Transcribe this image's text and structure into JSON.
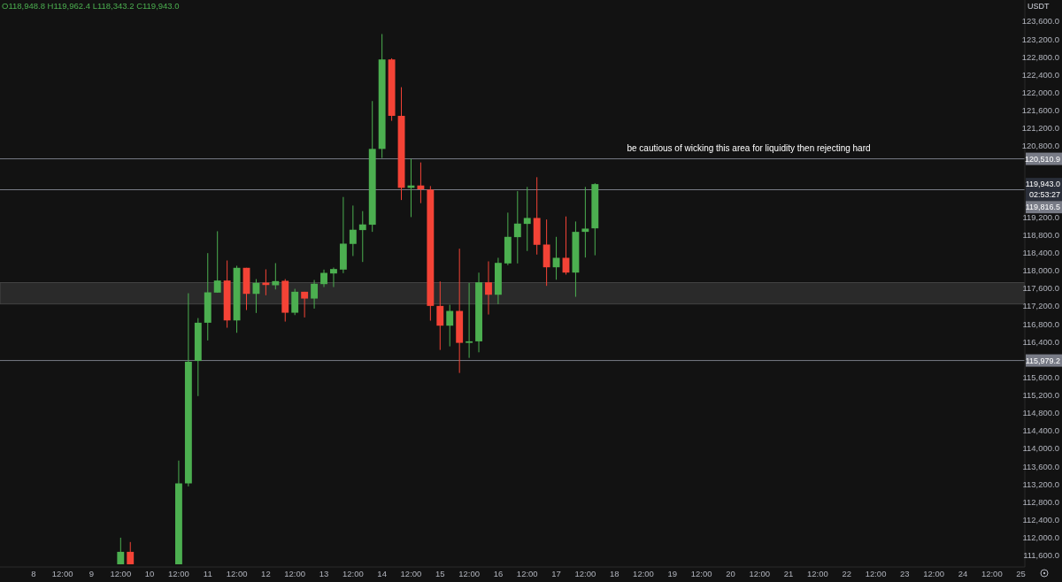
{
  "chart_data": {
    "type": "candlestick",
    "ylabel": "USDT",
    "categories": [
      null,
      null,
      "8",
      null,
      null,
      "12:00",
      null,
      null,
      "9",
      null,
      null,
      "12:00",
      null,
      null,
      "10",
      null,
      null,
      "12:00",
      null,
      null,
      "11",
      null,
      null,
      "12:00",
      null,
      null,
      "12",
      null,
      null,
      "12:00",
      null,
      null,
      "13",
      null,
      null,
      "12:00",
      null,
      null,
      "14",
      null,
      null,
      "12:00",
      null,
      null,
      "15",
      null,
      null,
      "12:00",
      null,
      null,
      "16",
      null,
      null,
      "12:00",
      null,
      null,
      "17",
      null,
      null,
      "12:00",
      null,
      null,
      "18",
      null,
      null,
      "12:00",
      null,
      null,
      "19",
      null,
      null,
      "12:00",
      null,
      null,
      "20",
      null,
      null,
      "12:00",
      null,
      null,
      "21",
      null,
      null,
      "12:00",
      null,
      null,
      "22",
      null,
      null,
      "12:00",
      null,
      null,
      "23",
      null,
      null,
      "12:00",
      null,
      null,
      "24",
      null,
      null,
      "12:00",
      null,
      null,
      "25"
    ],
    "ohlc": [
      null,
      null,
      null,
      null,
      null,
      null,
      null,
      null,
      null,
      null,
      null,
      [
        111400,
        111998,
        111400,
        111680
      ],
      [
        111680,
        111900,
        111400,
        111400
      ],
      null,
      null,
      null,
      null,
      [
        111400,
        113730,
        111400,
        113218
      ],
      [
        113218,
        117491,
        113150,
        115952
      ],
      [
        115970,
        116933,
        115180,
        116828
      ],
      [
        116828,
        118392,
        116430,
        117511
      ],
      [
        117505,
        118884,
        117505,
        117776
      ],
      [
        117776,
        118227,
        116715,
        116880
      ],
      [
        116880,
        118108,
        116602,
        118062
      ],
      [
        118062,
        118062,
        117113,
        117477
      ],
      [
        117477,
        117809,
        117047,
        117724
      ],
      [
        117730,
        118028,
        117445,
        117676
      ],
      [
        117670,
        118167,
        117576,
        117763
      ],
      [
        117770,
        117809,
        116854,
        117053
      ],
      [
        117053,
        117590,
        116999,
        117524
      ],
      [
        117524,
        117524,
        116947,
        117371
      ],
      [
        117371,
        117789,
        117146,
        117704
      ],
      [
        117696,
        118022,
        117630,
        117948
      ],
      [
        117935,
        118068,
        117630,
        118035
      ],
      [
        118022,
        119654,
        117942,
        118605
      ],
      [
        118599,
        119461,
        118327,
        118918
      ],
      [
        118910,
        119336,
        118193,
        119037
      ],
      [
        119030,
        121809,
        118870,
        120734
      ],
      [
        120734,
        123315,
        120529,
        122744
      ],
      [
        122744,
        122770,
        121365,
        121477
      ],
      [
        121477,
        122121,
        119586,
        119859
      ],
      [
        119859,
        120510,
        119202,
        119912
      ],
      [
        119912,
        120430,
        119515,
        119825
      ],
      [
        119819,
        119899,
        116874,
        117206
      ],
      [
        117206,
        117756,
        116217,
        116762
      ],
      [
        116762,
        117232,
        116297,
        117093
      ],
      [
        117093,
        118492,
        115700,
        116376
      ],
      [
        116376,
        117723,
        116038,
        116410
      ],
      [
        116410,
        117954,
        116164,
        117736
      ],
      [
        117736,
        118207,
        117013,
        117457
      ],
      [
        117457,
        118287,
        117246,
        118173
      ],
      [
        118161,
        119302,
        118121,
        118758
      ],
      [
        118751,
        119785,
        118161,
        119056
      ],
      [
        119049,
        119879,
        118440,
        119182
      ],
      [
        119182,
        120098,
        118360,
        118579
      ],
      [
        118585,
        119148,
        117656,
        118074
      ],
      [
        118074,
        118758,
        117795,
        118287
      ],
      [
        118287,
        119216,
        117909,
        117955
      ],
      [
        117955,
        119103,
        117411,
        118870
      ],
      [
        118870,
        119879,
        118293,
        118943
      ],
      [
        118948.8,
        119962.4,
        118343.2,
        119943.0
      ],
      null,
      null,
      null,
      null,
      null,
      null,
      null,
      null,
      null,
      null,
      null,
      null,
      null,
      null,
      null,
      null,
      null,
      null,
      null,
      null,
      null,
      null,
      null,
      null,
      null,
      null,
      null,
      null,
      null,
      null,
      null,
      null,
      null,
      null,
      null,
      null,
      null,
      null,
      null,
      null,
      null,
      null,
      null,
      null
    ],
    "colors": [
      null,
      null,
      null,
      null,
      null,
      null,
      null,
      null,
      null,
      null,
      null,
      "#4caf50",
      "#f44336",
      null,
      null,
      null,
      null,
      "#4caf50",
      "#4caf50",
      "#4caf50",
      "#4caf50",
      "#4caf50",
      "#f44336",
      "#4caf50",
      "#f44336",
      "#4caf50",
      "#f44336",
      "#4caf50",
      "#f44336",
      "#4caf50",
      "#f44336",
      "#4caf50",
      "#4caf50",
      "#4caf50",
      "#4caf50",
      "#4caf50",
      "#4caf50",
      "#4caf50",
      "#4caf50",
      "#f44336",
      "#f44336",
      "#4caf50",
      "#f44336",
      "#f44336",
      "#f44336",
      "#4caf50",
      "#f44336",
      "#4caf50",
      "#4caf50",
      "#f44336",
      "#4caf50",
      "#4caf50",
      "#4caf50",
      "#4caf50",
      "#f44336",
      "#f44336",
      "#4caf50",
      "#f44336",
      "#4caf50",
      "#4caf50",
      "#4caf50",
      null,
      null,
      null,
      null,
      null,
      null,
      null,
      null,
      null,
      null,
      null,
      null,
      null,
      null,
      null,
      null,
      null,
      null,
      null,
      null,
      null,
      null,
      null,
      null,
      null,
      null,
      null,
      null,
      null,
      null,
      null,
      null,
      null,
      null,
      null,
      null,
      null,
      null,
      null,
      null,
      null,
      null,
      null,
      null
    ],
    "ylim": [
      111340,
      124080
    ],
    "yticks": [
      {
        "value": 111600,
        "label": "111,600.0"
      },
      {
        "value": 112000,
        "label": "112,000.0"
      },
      {
        "value": 112400,
        "label": "112,400.0"
      },
      {
        "value": 112800,
        "label": "112,800.0"
      },
      {
        "value": 113200,
        "label": "113,200.0"
      },
      {
        "value": 113600,
        "label": "113,600.0"
      },
      {
        "value": 114000,
        "label": "114,000.0"
      },
      {
        "value": 114400,
        "label": "114,400.0"
      },
      {
        "value": 114800,
        "label": "114,800.0"
      },
      {
        "value": 115200,
        "label": "115,200.0"
      },
      {
        "value": 115600,
        "label": "115,600.0"
      },
      {
        "value": 116400,
        "label": "116,400.0"
      },
      {
        "value": 116800,
        "label": "116,800.0"
      },
      {
        "value": 117200,
        "label": "117,200.0"
      },
      {
        "value": 117600,
        "label": "117,600.0"
      },
      {
        "value": 118000,
        "label": "118,000.0"
      },
      {
        "value": 118400,
        "label": "118,400.0"
      },
      {
        "value": 118800,
        "label": "118,800.0"
      },
      {
        "value": 119200,
        "label": "119,200.0"
      },
      {
        "value": 120800,
        "label": "120,800.0"
      },
      {
        "value": 121200,
        "label": "121,200.0"
      },
      {
        "value": 121600,
        "label": "121,600.0"
      },
      {
        "value": 122000,
        "label": "122,000.0"
      },
      {
        "value": 122400,
        "label": "122,400.0"
      },
      {
        "value": 122800,
        "label": "122,800.0"
      },
      {
        "value": 123200,
        "label": "123,200.0"
      },
      {
        "value": 123600,
        "label": "123,600.0"
      }
    ],
    "ref_lines": [
      {
        "axis": "y",
        "value": 120510.9,
        "label": "120,510.9",
        "color": "#787b86"
      },
      {
        "axis": "y",
        "value": 119816.5,
        "label": "119,816.5",
        "color": "#787b86"
      },
      {
        "axis": "y",
        "value": 115979.2,
        "label": "115,979.2",
        "color": "#787b86"
      }
    ],
    "bands": [
      {
        "axis": "y",
        "from": 117250,
        "to": 117730,
        "color": "#2a2a2a"
      }
    ],
    "annotations": [
      "O118,948.8 H119,962.4 L118,343.2 C119,943.0",
      "be cautious of wicking this area for liquidity then rejecting hard",
      "119,943.0",
      "02:53:27"
    ]
  }
}
